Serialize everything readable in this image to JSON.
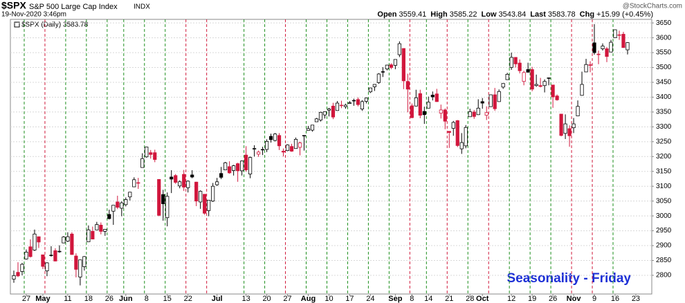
{
  "chart_data": {
    "type": "candlestick",
    "symbol": "$SPX",
    "name": "S&P 500 Large Cap Index",
    "exchange": "INDX",
    "timestamp": "19-Nov-2020 3:46pm",
    "watermark": "@StockCharts.com",
    "quote": [
      {
        "label": "Open",
        "value": "3559.41"
      },
      {
        "label": "High",
        "value": "3585.22"
      },
      {
        "label": "Low",
        "value": "3543.84"
      },
      {
        "label": "Last",
        "value": "3583.78"
      },
      {
        "label": "Chg",
        "value": "+15.99 (+0.45%)"
      }
    ],
    "legend": "$SPX (Daily) 3583.78",
    "annotation": "Seasonality - Friday",
    "up_color": "#000000",
    "down_color": "#d1163c",
    "friday_up_color": "#1d8f1d",
    "friday_down_color": "#d0183a",
    "grid": true,
    "x": [
      "2020-04-22",
      "2020-04-23",
      "2020-04-24",
      "2020-04-27",
      "2020-04-28",
      "2020-04-29",
      "2020-04-30",
      "2020-05-01",
      "2020-05-04",
      "2020-05-05",
      "2020-05-06",
      "2020-05-07",
      "2020-05-08",
      "2020-05-11",
      "2020-05-12",
      "2020-05-13",
      "2020-05-14",
      "2020-05-15",
      "2020-05-18",
      "2020-05-19",
      "2020-05-20",
      "2020-05-21",
      "2020-05-22",
      "2020-05-26",
      "2020-05-27",
      "2020-05-28",
      "2020-05-29",
      "2020-06-01",
      "2020-06-02",
      "2020-06-03",
      "2020-06-04",
      "2020-06-05",
      "2020-06-08",
      "2020-06-09",
      "2020-06-10",
      "2020-06-11",
      "2020-06-12",
      "2020-06-15",
      "2020-06-16",
      "2020-06-17",
      "2020-06-18",
      "2020-06-19",
      "2020-06-22",
      "2020-06-23",
      "2020-06-24",
      "2020-06-25",
      "2020-06-26",
      "2020-06-29",
      "2020-06-30",
      "2020-07-01",
      "2020-07-02",
      "2020-07-06",
      "2020-07-07",
      "2020-07-08",
      "2020-07-09",
      "2020-07-10",
      "2020-07-13",
      "2020-07-14",
      "2020-07-15",
      "2020-07-16",
      "2020-07-17",
      "2020-07-20",
      "2020-07-21",
      "2020-07-22",
      "2020-07-23",
      "2020-07-24",
      "2020-07-27",
      "2020-07-28",
      "2020-07-29",
      "2020-07-30",
      "2020-07-31",
      "2020-08-03",
      "2020-08-04",
      "2020-08-05",
      "2020-08-06",
      "2020-08-07",
      "2020-08-10",
      "2020-08-11",
      "2020-08-12",
      "2020-08-13",
      "2020-08-14",
      "2020-08-17",
      "2020-08-18",
      "2020-08-19",
      "2020-08-20",
      "2020-08-21",
      "2020-08-24",
      "2020-08-25",
      "2020-08-26",
      "2020-08-27",
      "2020-08-28",
      "2020-08-31",
      "2020-09-01",
      "2020-09-02",
      "2020-09-03",
      "2020-09-04",
      "2020-09-08",
      "2020-09-09",
      "2020-09-10",
      "2020-09-11",
      "2020-09-14",
      "2020-09-15",
      "2020-09-16",
      "2020-09-17",
      "2020-09-18",
      "2020-09-21",
      "2020-09-22",
      "2020-09-23",
      "2020-09-24",
      "2020-09-25",
      "2020-09-28",
      "2020-09-29",
      "2020-09-30",
      "2020-10-01",
      "2020-10-02",
      "2020-10-05",
      "2020-10-06",
      "2020-10-07",
      "2020-10-08",
      "2020-10-09",
      "2020-10-12",
      "2020-10-13",
      "2020-10-14",
      "2020-10-15",
      "2020-10-16",
      "2020-10-19",
      "2020-10-20",
      "2020-10-21",
      "2020-10-22",
      "2020-10-23",
      "2020-10-26",
      "2020-10-27",
      "2020-10-28",
      "2020-10-29",
      "2020-10-30",
      "2020-11-02",
      "2020-11-03",
      "2020-11-04",
      "2020-11-05",
      "2020-11-06",
      "2020-11-09",
      "2020-11-10",
      "2020-11-11",
      "2020-11-12",
      "2020-11-13",
      "2020-11-16",
      "2020-11-17",
      "2020-11-18",
      "2020-11-19"
    ],
    "open": [
      2787,
      2810,
      2813,
      2855,
      2896,
      2885,
      2930,
      2869,
      2815,
      2868,
      2883,
      2879,
      2909,
      2915,
      2939,
      2865,
      2794,
      2829,
      2913,
      2948,
      2953,
      2969,
      2948,
      3005,
      3016,
      3047,
      3026,
      3038,
      3064,
      3098,
      3111,
      3163,
      3199,
      3213,
      3213,
      3123,
      3072,
      2994,
      3131,
      3136,
      3101,
      3140,
      3095,
      3138,
      3114,
      3047,
      3073,
      3018,
      3050,
      3105,
      3143,
      3155,
      3166,
      3153,
      3176,
      3152,
      3205,
      3141,
      3225,
      3208,
      3224,
      3224,
      3268,
      3254,
      3271,
      3218,
      3220,
      3234,
      3227,
      3231,
      3270,
      3288,
      3289,
      3317,
      3323,
      3340,
      3356,
      3370,
      3355,
      3372,
      3368,
      3380,
      3388,
      3392,
      3360,
      3386,
      3418,
      3435,
      3449,
      3486,
      3495,
      3509,
      3507,
      3543,
      3564,
      3453,
      3371,
      3370,
      3412,
      3352,
      3363,
      3407,
      3411,
      3346,
      3357,
      3285,
      3295,
      3321,
      3226,
      3236,
      3334,
      3350,
      3341,
      3385,
      3339,
      3368,
      3408,
      3385,
      3434,
      3459,
      3500,
      3534,
      3515,
      3453,
      3493,
      3493,
      3439,
      3439,
      3439,
      3464,
      3441,
      3404,
      3343,
      3278,
      3294,
      3297,
      3337,
      3406,
      3485,
      3508,
      3583,
      3543,
      3563,
      3563,
      3552,
      3600,
      3610,
      3612,
      3559.41
    ],
    "high": [
      2816,
      2844,
      2842,
      2887,
      2921,
      2954,
      2930,
      2869,
      2844,
      2898,
      2891,
      2901,
      2932,
      2945,
      2945,
      2874,
      2852,
      2865,
      2968,
      2964,
      2980,
      2978,
      2956,
      3021,
      3036,
      3068,
      3049,
      3062,
      3081,
      3130,
      3128,
      3211,
      3233,
      3222,
      3223,
      3123,
      3088,
      3079,
      3154,
      3141,
      3120,
      3155,
      3120,
      3154,
      3115,
      3086,
      3073,
      3053,
      3111,
      3128,
      3165,
      3182,
      3184,
      3172,
      3179,
      3187,
      3235,
      3200,
      3238,
      3220,
      3233,
      3258,
      3277,
      3279,
      3279,
      3227,
      3241,
      3243,
      3264,
      3250,
      3272,
      3303,
      3306,
      3330,
      3351,
      3352,
      3364,
      3381,
      3387,
      3388,
      3378,
      3387,
      3395,
      3399,
      3390,
      3399,
      3432,
      3444,
      3481,
      3501,
      3509,
      3514,
      3528,
      3588,
      3564,
      3479,
      3379,
      3425,
      3425,
      3368,
      3402,
      3419,
      3428,
      3375,
      3362,
      3285,
      3320,
      3323,
      3279,
      3306,
      3361,
      3357,
      3393,
      3397,
      3369,
      3409,
      3431,
      3426,
      3447,
      3482,
      3550,
      3534,
      3527,
      3489,
      3516,
      3502,
      3476,
      3465,
      3460,
      3466,
      3441,
      3409,
      3342,
      3342,
      3305,
      3330,
      3389,
      3486,
      3529,
      3521,
      3646,
      3557,
      3581,
      3569,
      3593,
      3628,
      3624,
      3620,
      3585.22
    ],
    "low": [
      2775,
      2794,
      2800,
      2853,
      2860,
      2882,
      2892,
      2821,
      2797,
      2863,
      2847,
      2876,
      2908,
      2912,
      2869,
      2793,
      2766,
      2816,
      2913,
      2922,
      2953,
      2938,
      2933,
      2988,
      2970,
      3023,
      2999,
      3032,
      3052,
      3098,
      3091,
      3163,
      3196,
      3193,
      3181,
      2999,
      2984,
      2965,
      3077,
      3108,
      3093,
      3084,
      3079,
      3127,
      3033,
      3024,
      3004,
      2999,
      3047,
      3101,
      3124,
      3155,
      3142,
      3136,
      3115,
      3136,
      3149,
      3127,
      3200,
      3199,
      3205,
      3215,
      3247,
      3251,
      3222,
      3200,
      3218,
      3216,
      3227,
      3204,
      3220,
      3288,
      3284,
      3317,
      3318,
      3328,
      3335,
      3326,
      3355,
      3363,
      3361,
      3379,
      3371,
      3369,
      3354,
      3379,
      3414,
      3421,
      3445,
      3468,
      3490,
      3494,
      3494,
      3535,
      3427,
      3349,
      3329,
      3369,
      3329,
      3310,
      3363,
      3389,
      3384,
      3328,
      3292,
      3229,
      3270,
      3232,
      3209,
      3228,
      3334,
      3327,
      3340,
      3361,
      3323,
      3367,
      3354,
      3385,
      3428,
      3458,
      3492,
      3500,
      3480,
      3440,
      3483,
      3420,
      3435,
      3433,
      3416,
      3440,
      3364,
      3388,
      3268,
      3259,
      3233,
      3279,
      3337,
      3405,
      3485,
      3484,
      3543,
      3511,
      3557,
      3518,
      3552,
      3600,
      3593,
      3567,
      3543.84
    ],
    "close": [
      2799,
      2798,
      2837,
      2878,
      2863,
      2939,
      2912,
      2830,
      2842,
      2868,
      2848,
      2881,
      2929,
      2930,
      2870,
      2820,
      2852,
      2863,
      2953,
      2922,
      2971,
      2948,
      2955,
      2991,
      3036,
      3029,
      3044,
      3055,
      3080,
      3122,
      3112,
      3193,
      3232,
      3207,
      3190,
      3002,
      3041,
      3066,
      3124,
      3113,
      3115,
      3097,
      3117,
      3131,
      3050,
      3083,
      3009,
      3053,
      3100,
      3115,
      3130,
      3179,
      3145,
      3169,
      3152,
      3185,
      3155,
      3197,
      3227,
      3215,
      3224,
      3251,
      3257,
      3276,
      3236,
      3215,
      3239,
      3218,
      3258,
      3246,
      3271,
      3294,
      3306,
      3327,
      3349,
      3351,
      3360,
      3333,
      3380,
      3373,
      3373,
      3381,
      3389,
      3375,
      3385,
      3397,
      3431,
      3443,
      3478,
      3484,
      3508,
      3500,
      3527,
      3580,
      3455,
      3427,
      3331,
      3398,
      3339,
      3341,
      3383,
      3401,
      3385,
      3357,
      3319,
      3281,
      3315,
      3237,
      3247,
      3298,
      3351,
      3335,
      3363,
      3380,
      3348,
      3408,
      3361,
      3419,
      3446,
      3477,
      3534,
      3512,
      3489,
      3483,
      3484,
      3427,
      3443,
      3436,
      3453,
      3465,
      3401,
      3391,
      3271,
      3310,
      3270,
      3310,
      3369,
      3443,
      3510,
      3509,
      3550,
      3545,
      3572,
      3537,
      3585,
      3627,
      3610,
      3567,
      3583.78
    ],
    "xticks": [
      {
        "value": "2020-04-27",
        "label": "27"
      },
      {
        "value": "2020-05-01",
        "label": "May"
      },
      {
        "value": "2020-05-11",
        "label": "11"
      },
      {
        "value": "2020-05-18",
        "label": "18"
      },
      {
        "value": "2020-05-26",
        "label": "26"
      },
      {
        "value": "2020-06-01",
        "label": "Jun"
      },
      {
        "value": "2020-06-08",
        "label": "8"
      },
      {
        "value": "2020-06-15",
        "label": "15"
      },
      {
        "value": "2020-06-22",
        "label": "22"
      },
      {
        "value": "2020-07-01",
        "label": "Jul"
      },
      {
        "value": "2020-07-13",
        "label": "13"
      },
      {
        "value": "2020-07-20",
        "label": "20"
      },
      {
        "value": "2020-07-27",
        "label": "27"
      },
      {
        "value": "2020-08-03",
        "label": "Aug"
      },
      {
        "value": "2020-08-10",
        "label": "10"
      },
      {
        "value": "2020-08-17",
        "label": "17"
      },
      {
        "value": "2020-08-24",
        "label": "24"
      },
      {
        "value": "2020-09-01",
        "label": "Sep"
      },
      {
        "value": "2020-09-08",
        "label": "8"
      },
      {
        "value": "2020-09-14",
        "label": "14"
      },
      {
        "value": "2020-09-21",
        "label": "21"
      },
      {
        "value": "2020-09-28",
        "label": "28"
      },
      {
        "value": "2020-10-01",
        "label": "Oct"
      },
      {
        "value": "2020-10-12",
        "label": "12"
      },
      {
        "value": "2020-10-19",
        "label": "19"
      },
      {
        "value": "2020-10-26",
        "label": "26"
      },
      {
        "value": "2020-11-02",
        "label": "Nov"
      },
      {
        "value": "2020-11-09",
        "label": "9"
      },
      {
        "value": "2020-11-16",
        "label": "16"
      },
      {
        "value": "2020-11-23",
        "label": "23"
      }
    ],
    "ylim": [
      2737,
      3662
    ],
    "yticks": [
      2800,
      2850,
      2900,
      2950,
      3000,
      3050,
      3100,
      3150,
      3200,
      3250,
      3300,
      3350,
      3400,
      3450,
      3500,
      3550,
      3600,
      3650
    ]
  }
}
